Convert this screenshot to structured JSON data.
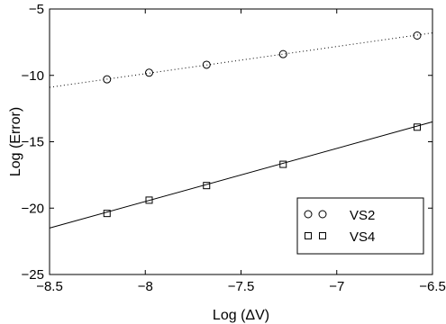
{
  "chart_data": {
    "type": "scatter",
    "xlabel": "Log (ΔV)",
    "ylabel": "Log (Error)",
    "xlim": [
      -8.5,
      -6.5
    ],
    "ylim": [
      -25,
      -5
    ],
    "x_ticks": [
      -8.5,
      -8,
      -7.5,
      -7,
      -6.5
    ],
    "y_ticks": [
      -5,
      -10,
      -15,
      -20,
      -25
    ],
    "x_tick_labels": [
      "−8.5",
      "−8",
      "−7.5",
      "−7",
      "−6.5"
    ],
    "y_tick_labels": [
      "−5",
      "−10",
      "−15",
      "−20",
      "−25"
    ],
    "grid": false,
    "legend": {
      "position": "bottom-right"
    },
    "series": [
      {
        "name": "VS2",
        "marker": "circle",
        "line_style": "dotted",
        "points": [
          {
            "x": -8.2,
            "y": -10.3
          },
          {
            "x": -7.98,
            "y": -9.8
          },
          {
            "x": -7.68,
            "y": -9.2
          },
          {
            "x": -7.28,
            "y": -8.4
          },
          {
            "x": -6.58,
            "y": -7.0
          }
        ],
        "fit_line": [
          {
            "x": -8.5,
            "y": -10.9
          },
          {
            "x": -6.5,
            "y": -6.8
          }
        ]
      },
      {
        "name": "VS4",
        "marker": "square",
        "line_style": "solid",
        "points": [
          {
            "x": -8.2,
            "y": -20.4
          },
          {
            "x": -7.98,
            "y": -19.4
          },
          {
            "x": -7.68,
            "y": -18.3
          },
          {
            "x": -7.28,
            "y": -16.7
          },
          {
            "x": -6.58,
            "y": -13.9
          }
        ],
        "fit_line": [
          {
            "x": -8.5,
            "y": -21.5
          },
          {
            "x": -6.5,
            "y": -13.5
          }
        ]
      }
    ]
  }
}
